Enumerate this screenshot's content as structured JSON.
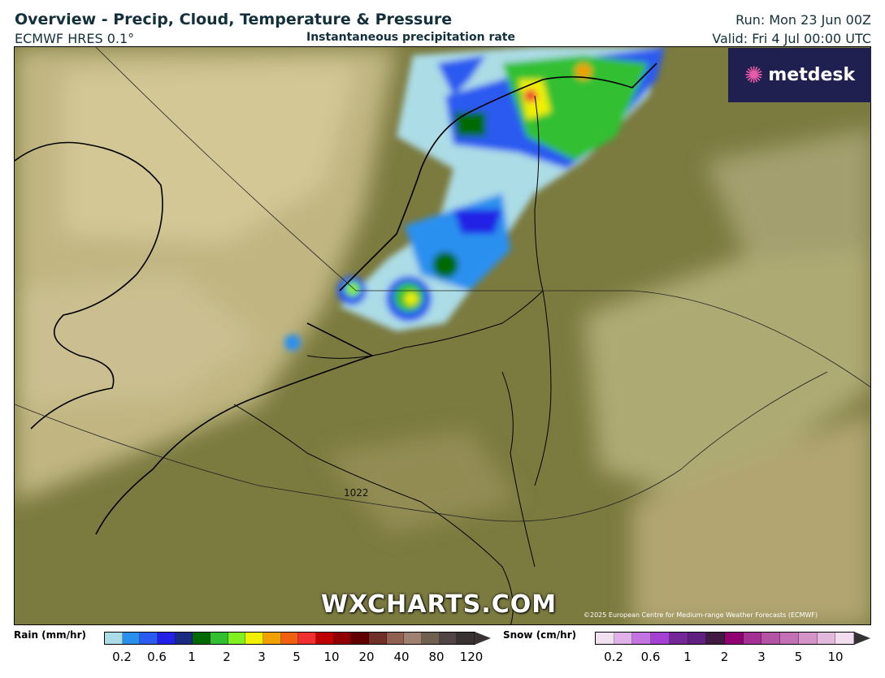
{
  "header": {
    "title": "Overview - Precip, Cloud, Temperature & Pressure",
    "model": "ECMWF HRES 0.1°",
    "subtitle": "Instantaneous precipitation rate",
    "run": "Run: Mon 23 Jun 00Z",
    "valid": "Valid: Fri 4 Jul 00:00 UTC"
  },
  "map": {
    "isobar_label": "1022",
    "watermark": "WXCHARTS.COM",
    "copyright": "©2025 European Centre for Medium-range Weather Forecasts (ECMWF)",
    "logo": "metdesk"
  },
  "legend": {
    "rain": {
      "label": "Rain (mm/hr)",
      "colors": [
        "#acdce6",
        "#2a90f0",
        "#2a5af0",
        "#2222e6",
        "#1a2a80",
        "#006a00",
        "#32c032",
        "#80f020",
        "#f0f000",
        "#f0a000",
        "#f06010",
        "#f03030",
        "#c00000",
        "#900000",
        "#600000",
        "#703028",
        "#906050",
        "#a08070",
        "#706050",
        "#504444",
        "#383232"
      ],
      "ticks": [
        "0.2",
        "0.6",
        "1",
        "2",
        "3",
        "5",
        "10",
        "20",
        "40",
        "80",
        "120"
      ]
    },
    "snow": {
      "label": "Snow (cm/hr)",
      "colors": [
        "#f0e0f0",
        "#e0b0e8",
        "#c474e0",
        "#a440d4",
        "#742898",
        "#602080",
        "#401a40",
        "#900070",
        "#a43094",
        "#b452a4",
        "#c470b4",
        "#d494c8",
        "#e2b8dc",
        "#f2dcf0"
      ],
      "ticks": [
        "0.2",
        "0.6",
        "1",
        "2",
        "3",
        "5",
        "10"
      ]
    }
  }
}
